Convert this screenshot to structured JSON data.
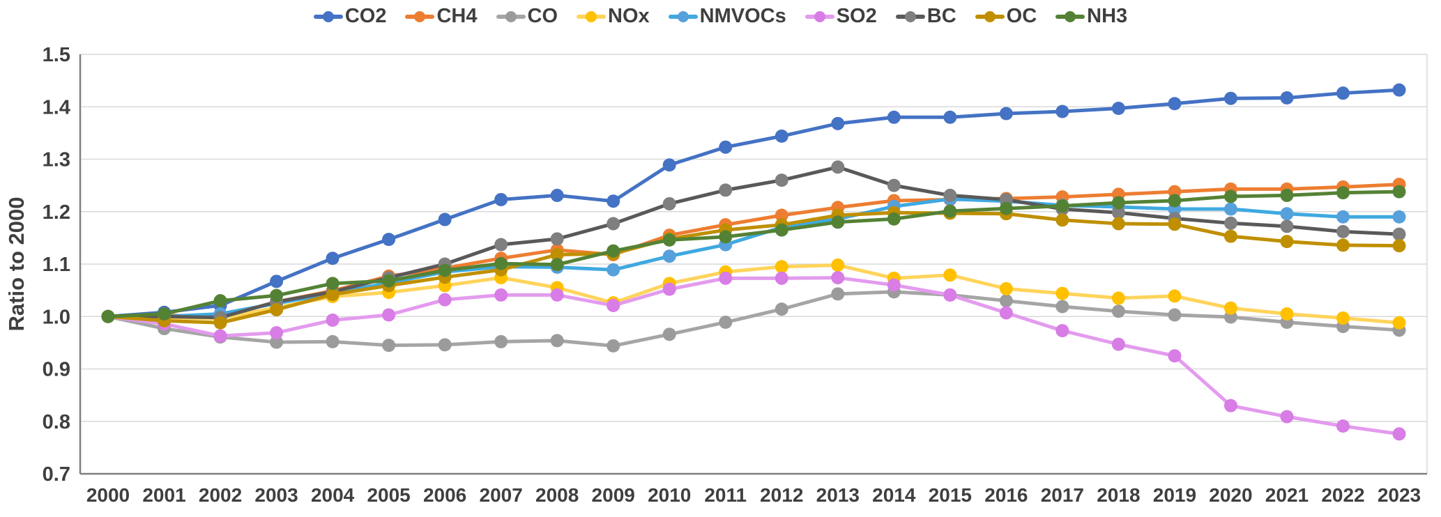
{
  "chart": {
    "y_axis_title": "Ratio to 2000",
    "text_color": "#3f3f3f",
    "grid_color": "#d9d9d9",
    "axis_color": "#7f7f7f",
    "background": "#ffffff"
  },
  "chart_data": {
    "type": "line",
    "title": "",
    "xlabel": "",
    "ylabel": "Ratio to 2000",
    "ylim": [
      0.7,
      1.5
    ],
    "ytick_step": 0.1,
    "grid": true,
    "legend_position": "top",
    "x": [
      2000,
      2001,
      2002,
      2003,
      2004,
      2005,
      2006,
      2007,
      2008,
      2009,
      2010,
      2011,
      2012,
      2013,
      2014,
      2015,
      2016,
      2017,
      2018,
      2019,
      2020,
      2021,
      2022,
      2023
    ],
    "series": [
      {
        "name": "CO2",
        "color": "#4472c4",
        "marker_color": "#4472c4",
        "values": [
          1.0,
          1.008,
          1.021,
          1.067,
          1.111,
          1.147,
          1.185,
          1.223,
          1.231,
          1.22,
          1.289,
          1.323,
          1.344,
          1.368,
          1.38,
          1.38,
          1.387,
          1.391,
          1.397,
          1.406,
          1.416,
          1.417,
          1.426,
          1.432
        ]
      },
      {
        "name": "CH4",
        "color": "#ed7d31",
        "marker_color": "#ed7d31",
        "values": [
          1.0,
          1.003,
          0.998,
          1.028,
          1.049,
          1.077,
          1.092,
          1.111,
          1.127,
          1.118,
          1.155,
          1.175,
          1.193,
          1.208,
          1.221,
          1.223,
          1.225,
          1.228,
          1.233,
          1.238,
          1.243,
          1.243,
          1.247,
          1.252
        ]
      },
      {
        "name": "CO",
        "color": "#a5a5a5",
        "marker_color": "#9b9b9b",
        "values": [
          1.0,
          0.977,
          0.961,
          0.951,
          0.952,
          0.945,
          0.946,
          0.952,
          0.954,
          0.944,
          0.966,
          0.989,
          1.014,
          1.043,
          1.047,
          1.041,
          1.03,
          1.019,
          1.01,
          1.003,
          0.999,
          0.989,
          0.981,
          0.974
        ]
      },
      {
        "name": "NOx",
        "color": "#ffd45c",
        "marker_color": "#ffc000",
        "values": [
          1.0,
          0.998,
          0.996,
          1.017,
          1.038,
          1.046,
          1.059,
          1.074,
          1.055,
          1.026,
          1.063,
          1.085,
          1.095,
          1.098,
          1.073,
          1.079,
          1.053,
          1.044,
          1.035,
          1.039,
          1.016,
          1.005,
          0.997,
          0.988
        ]
      },
      {
        "name": "NMVOCs",
        "color": "#3fa9e0",
        "marker_color": "#56a0dc",
        "values": [
          1.0,
          1.0,
          1.005,
          1.025,
          1.044,
          1.064,
          1.085,
          1.095,
          1.094,
          1.089,
          1.115,
          1.137,
          1.17,
          1.186,
          1.21,
          1.224,
          1.22,
          1.212,
          1.209,
          1.205,
          1.205,
          1.196,
          1.19,
          1.19
        ]
      },
      {
        "name": "SO2",
        "color": "#e39bee",
        "marker_color": "#d87ce6",
        "values": [
          1.0,
          0.986,
          0.963,
          0.969,
          0.993,
          1.003,
          1.032,
          1.041,
          1.041,
          1.021,
          1.052,
          1.073,
          1.073,
          1.074,
          1.06,
          1.041,
          1.007,
          0.973,
          0.947,
          0.925,
          0.83,
          0.809,
          0.791,
          0.776
        ]
      },
      {
        "name": "BC",
        "color": "#595959",
        "marker_color": "#7f7f7f",
        "values": [
          1.0,
          1.0,
          0.998,
          1.028,
          1.047,
          1.074,
          1.1,
          1.137,
          1.148,
          1.177,
          1.215,
          1.241,
          1.26,
          1.285,
          1.25,
          1.231,
          1.223,
          1.205,
          1.198,
          1.187,
          1.178,
          1.172,
          1.162,
          1.157
        ]
      },
      {
        "name": "OC",
        "color": "#bf8f00",
        "marker_color": "#bf8f00",
        "values": [
          1.0,
          0.992,
          0.988,
          1.013,
          1.042,
          1.059,
          1.075,
          1.089,
          1.118,
          1.12,
          1.148,
          1.165,
          1.175,
          1.193,
          1.198,
          1.197,
          1.196,
          1.184,
          1.177,
          1.176,
          1.153,
          1.143,
          1.136,
          1.135
        ]
      },
      {
        "name": "NH3",
        "color": "#548235",
        "marker_color": "#548235",
        "values": [
          1.0,
          1.005,
          1.03,
          1.04,
          1.063,
          1.068,
          1.088,
          1.101,
          1.099,
          1.125,
          1.146,
          1.152,
          1.165,
          1.18,
          1.186,
          1.201,
          1.206,
          1.211,
          1.217,
          1.221,
          1.229,
          1.231,
          1.236,
          1.238
        ]
      }
    ]
  }
}
